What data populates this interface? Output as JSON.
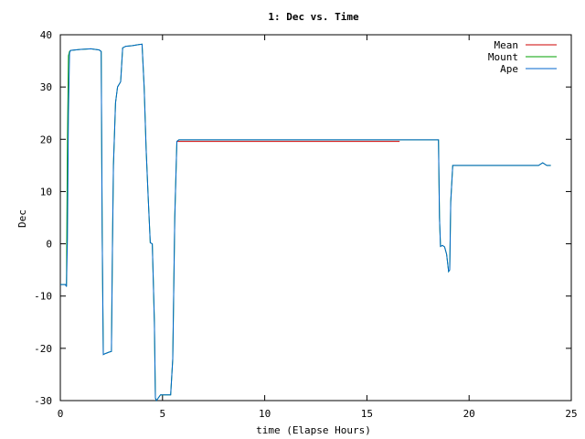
{
  "chart_data": {
    "type": "line",
    "title": "1: Dec vs. Time",
    "xlabel": "time (Elapse Hours)",
    "ylabel": "Dec",
    "xlim": [
      0,
      25
    ],
    "ylim": [
      -30,
      40
    ],
    "xticks": [
      0,
      5,
      10,
      15,
      20,
      25
    ],
    "yticks": [
      -30,
      -20,
      -10,
      0,
      10,
      20,
      30,
      40
    ],
    "xtick_labels": [
      "0",
      "5",
      "10",
      "15",
      "20",
      "25"
    ],
    "ytick_labels": [
      "-30",
      "-20",
      "-10",
      "0",
      "10",
      "20",
      "30",
      "40"
    ],
    "grid": false,
    "legend_position": "top-right",
    "series": [
      {
        "name": "Mean",
        "color": "#cc0000",
        "points": [
          [
            5.7,
            19.6
          ],
          [
            16.6,
            19.6
          ]
        ]
      },
      {
        "name": "Mount",
        "color": "#00a000",
        "points": [
          [
            0,
            -7.8
          ],
          [
            0.25,
            -7.8
          ],
          [
            0.3,
            -8.2
          ],
          [
            0.35,
            20
          ],
          [
            0.4,
            36
          ],
          [
            0.45,
            36.8
          ],
          [
            0.5,
            37
          ],
          [
            1.0,
            37.2
          ],
          [
            1.5,
            37.3
          ],
          [
            1.9,
            37.1
          ],
          [
            2.0,
            36.8
          ],
          [
            2.05,
            2
          ],
          [
            2.1,
            -21.2
          ],
          [
            2.2,
            -21
          ],
          [
            2.4,
            -20.7
          ],
          [
            2.5,
            -20.6
          ],
          [
            2.55,
            -1
          ],
          [
            2.6,
            15
          ],
          [
            2.7,
            27
          ],
          [
            2.8,
            30
          ],
          [
            2.95,
            31
          ],
          [
            3.05,
            37.5
          ],
          [
            3.2,
            37.8
          ],
          [
            3.5,
            37.9
          ],
          [
            3.8,
            38.1
          ],
          [
            4.0,
            38.2
          ],
          [
            4.1,
            30
          ],
          [
            4.2,
            18
          ],
          [
            4.3,
            9
          ],
          [
            4.4,
            0.2
          ],
          [
            4.5,
            0
          ],
          [
            4.55,
            -7
          ],
          [
            4.6,
            -15
          ],
          [
            4.65,
            -29.5
          ],
          [
            4.7,
            -30
          ],
          [
            4.9,
            -28.9
          ],
          [
            5.4,
            -28.9
          ],
          [
            5.5,
            -22
          ],
          [
            5.6,
            5
          ],
          [
            5.7,
            19.6
          ],
          [
            5.8,
            19.9
          ],
          [
            10,
            19.9
          ],
          [
            15,
            19.9
          ],
          [
            18.5,
            19.9
          ],
          [
            18.55,
            5
          ],
          [
            18.6,
            -0.5
          ],
          [
            18.7,
            -0.3
          ],
          [
            18.8,
            -0.6
          ],
          [
            18.9,
            -2
          ],
          [
            19.0,
            -5.3
          ],
          [
            19.05,
            -5
          ],
          [
            19.1,
            8
          ],
          [
            19.2,
            15
          ],
          [
            20,
            15
          ],
          [
            22,
            15
          ],
          [
            23.4,
            15
          ],
          [
            23.6,
            15.5
          ],
          [
            23.8,
            15
          ],
          [
            24,
            15
          ]
        ]
      },
      {
        "name": "Ape",
        "color": "#0066cc",
        "points": [
          [
            0,
            -7.8
          ],
          [
            0.25,
            -7.8
          ],
          [
            0.3,
            -8.2
          ],
          [
            0.35,
            1
          ],
          [
            0.4,
            25
          ],
          [
            0.45,
            36.5
          ],
          [
            0.5,
            37
          ],
          [
            1.0,
            37.2
          ],
          [
            1.5,
            37.3
          ],
          [
            1.9,
            37.1
          ],
          [
            2.0,
            36.8
          ],
          [
            2.05,
            2
          ],
          [
            2.1,
            -21.2
          ],
          [
            2.2,
            -21
          ],
          [
            2.4,
            -20.7
          ],
          [
            2.5,
            -20.6
          ],
          [
            2.55,
            -1
          ],
          [
            2.6,
            15
          ],
          [
            2.7,
            27
          ],
          [
            2.8,
            30
          ],
          [
            2.95,
            31
          ],
          [
            3.05,
            37.5
          ],
          [
            3.2,
            37.8
          ],
          [
            3.5,
            37.9
          ],
          [
            3.8,
            38.1
          ],
          [
            4.0,
            38.2
          ],
          [
            4.1,
            30
          ],
          [
            4.2,
            18
          ],
          [
            4.3,
            9
          ],
          [
            4.4,
            0.2
          ],
          [
            4.5,
            0
          ],
          [
            4.55,
            -7
          ],
          [
            4.6,
            -15
          ],
          [
            4.65,
            -29.5
          ],
          [
            4.7,
            -30
          ],
          [
            4.9,
            -28.9
          ],
          [
            5.4,
            -28.9
          ],
          [
            5.5,
            -22
          ],
          [
            5.6,
            5
          ],
          [
            5.7,
            19.6
          ],
          [
            5.8,
            19.9
          ],
          [
            10,
            19.9
          ],
          [
            15,
            19.9
          ],
          [
            18.5,
            19.9
          ],
          [
            18.55,
            5
          ],
          [
            18.6,
            -0.5
          ],
          [
            18.7,
            -0.3
          ],
          [
            18.8,
            -0.6
          ],
          [
            18.9,
            -2
          ],
          [
            19.0,
            -5.3
          ],
          [
            19.05,
            -5
          ],
          [
            19.1,
            8
          ],
          [
            19.2,
            15
          ],
          [
            20,
            15
          ],
          [
            22,
            15
          ],
          [
            23.4,
            15
          ],
          [
            23.6,
            15.5
          ],
          [
            23.8,
            15
          ],
          [
            24,
            15
          ]
        ]
      }
    ]
  }
}
